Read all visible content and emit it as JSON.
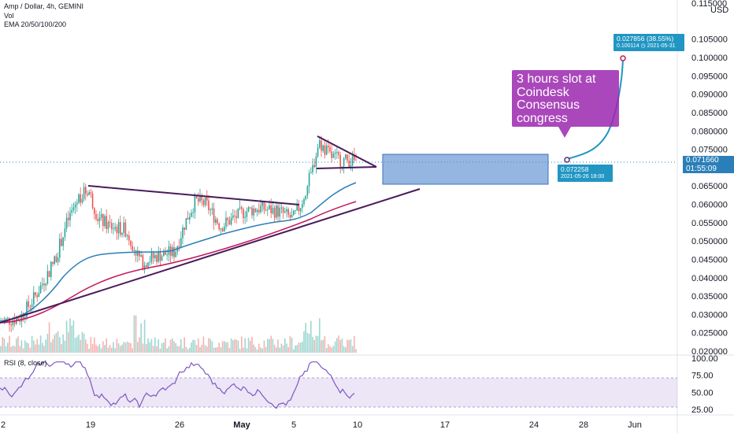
{
  "legend": {
    "line1": "Amp / Dollar, 4h, GEMINI",
    "line2": "Vol",
    "line3": "EMA 20/50/100/200"
  },
  "rsi_legend": "RSI (8, close)",
  "currency": "USD",
  "price_axis": [
    "0.115000",
    "0.105000",
    "0.100000",
    "0.095000",
    "0.090000",
    "0.085000",
    "0.080000",
    "0.075000",
    "0.070000",
    "0.065000",
    "0.060000",
    "0.055000",
    "0.050000",
    "0.045000",
    "0.040000",
    "0.035000",
    "0.030000",
    "0.025000",
    "0.020000"
  ],
  "rsi_axis": [
    "100.00",
    "75.00",
    "50.00",
    "25.00"
  ],
  "date_axis": [
    "2",
    "19",
    "26",
    "May",
    "5",
    "10",
    "17",
    "24",
    "28",
    "Jun"
  ],
  "current_price": {
    "value": "0.071660",
    "countdown": "01:55:09"
  },
  "callout": {
    "text": "3 hours slot at Coindesk Consensus congress",
    "color": "#9c27b0"
  },
  "start_tag": {
    "price": "0.072258",
    "date": "2021-05-26 18:00"
  },
  "target_tag": {
    "line1": "0.027856 (38.55%)",
    "line2_price": "0.100114",
    "line2_date": "2021-05-31"
  },
  "colors": {
    "up": "#26a69a",
    "down": "#ef5350",
    "ema_fast": "#2b7fb8",
    "ema_slow": "#c2185b",
    "trendline": "#4a1a5c",
    "rsi_line": "#7e57c2",
    "box_fill": "#5b8fd0"
  },
  "chart_data": {
    "type": "line",
    "title": "Amp / Dollar, 4h, GEMINI",
    "ylabel": "USD",
    "ylim": [
      0.02,
      0.115
    ],
    "x_ticks": [
      "2",
      "19",
      "26",
      "May",
      "5",
      "10",
      "17",
      "24",
      "28",
      "Jun"
    ],
    "series": [
      {
        "name": "Amp / Dollar",
        "x": [
          "2",
          "19",
          "26",
          "May",
          "5",
          "10"
        ],
        "values": [
          0.028,
          0.064,
          0.047,
          0.055,
          0.058,
          0.0717
        ]
      }
    ],
    "projection": {
      "start": 0.072258,
      "end": 0.100114,
      "change": "0.027856 (38.55%)"
    },
    "rsi": {
      "ylim": [
        25,
        100
      ],
      "ticks": [
        100,
        75,
        50,
        25
      ]
    }
  }
}
